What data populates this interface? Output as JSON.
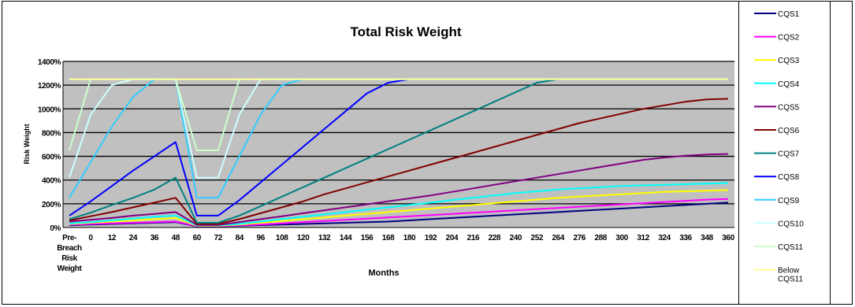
{
  "chart_data": {
    "type": "line",
    "title": "Total Risk Weight",
    "xlabel": "Months",
    "ylabel": "Risk Weight",
    "x": [
      "Pre-Breach Risk Weight",
      "0",
      "12",
      "24",
      "36",
      "48",
      "60",
      "72",
      "84",
      "96",
      "108",
      "120",
      "132",
      "144",
      "156",
      "168",
      "180",
      "192",
      "204",
      "216",
      "228",
      "240",
      "252",
      "264",
      "276",
      "288",
      "300",
      "312",
      "324",
      "336",
      "348",
      "360"
    ],
    "x_label_lines": [
      [
        "Pre-",
        "Breach",
        "Risk",
        "Weight"
      ]
    ],
    "yticks": [
      "0%",
      "200%",
      "400%",
      "600%",
      "800%",
      "1000%",
      "1200%",
      "1400%"
    ],
    "ylim": [
      0,
      1400
    ],
    "grid": true,
    "legend_position": "right",
    "legend_label_lines": {
      "Below CQS11": [
        "Below",
        "CQS11"
      ]
    },
    "series": [
      {
        "name": "CQS1",
        "color": "#000080",
        "values": [
          20,
          25,
          30,
          35,
          40,
          45,
          10,
          10,
          15,
          20,
          25,
          30,
          35,
          40,
          45,
          50,
          60,
          70,
          80,
          90,
          100,
          110,
          120,
          130,
          140,
          150,
          160,
          170,
          180,
          190,
          200,
          210
        ]
      },
      {
        "name": "CQS2",
        "color": "#ff00ff",
        "values": [
          25,
          30,
          35,
          40,
          45,
          50,
          12,
          12,
          18,
          25,
          35,
          45,
          55,
          65,
          75,
          85,
          95,
          105,
          115,
          125,
          135,
          145,
          155,
          165,
          175,
          185,
          195,
          205,
          215,
          225,
          235,
          240
        ]
      },
      {
        "name": "CQS3",
        "color": "#ffff00",
        "values": [
          30,
          40,
          50,
          60,
          70,
          80,
          15,
          15,
          25,
          40,
          55,
          70,
          85,
          100,
          115,
          130,
          145,
          160,
          175,
          190,
          205,
          220,
          235,
          250,
          260,
          270,
          280,
          290,
          300,
          305,
          310,
          315
        ]
      },
      {
        "name": "CQS4",
        "color": "#00ffff",
        "values": [
          35,
          45,
          60,
          75,
          90,
          100,
          18,
          18,
          30,
          50,
          70,
          90,
          110,
          130,
          150,
          170,
          190,
          210,
          230,
          250,
          270,
          290,
          305,
          320,
          330,
          340,
          350,
          355,
          360,
          365,
          370,
          375
        ]
      },
      {
        "name": "CQS5",
        "color": "#800080",
        "values": [
          50,
          65,
          80,
          100,
          115,
          130,
          22,
          22,
          45,
          70,
          95,
          120,
          145,
          170,
          195,
          220,
          245,
          270,
          300,
          330,
          360,
          390,
          420,
          450,
          480,
          510,
          540,
          570,
          590,
          605,
          615,
          620
        ]
      },
      {
        "name": "CQS6",
        "color": "#800000",
        "values": [
          60,
          95,
          130,
          170,
          210,
          250,
          30,
          30,
          70,
          120,
          170,
          220,
          280,
          330,
          380,
          430,
          480,
          530,
          580,
          630,
          680,
          730,
          780,
          830,
          880,
          920,
          960,
          1000,
          1030,
          1060,
          1080,
          1085
        ]
      },
      {
        "name": "CQS7",
        "color": "#008080",
        "values": [
          70,
          125,
          190,
          250,
          320,
          420,
          40,
          40,
          100,
          180,
          260,
          340,
          420,
          500,
          580,
          660,
          740,
          820,
          900,
          980,
          1060,
          1140,
          1220,
          1250,
          1250,
          1250,
          1250,
          1250,
          1250,
          1250,
          1250,
          1250
        ]
      },
      {
        "name": "CQS8",
        "color": "#0000ff",
        "values": [
          100,
          220,
          350,
          480,
          600,
          720,
          100,
          100,
          230,
          380,
          530,
          680,
          830,
          980,
          1130,
          1220,
          1250,
          1250,
          1250,
          1250,
          1250,
          1250,
          1250,
          1250,
          1250,
          1250,
          1250,
          1250,
          1250,
          1250,
          1250,
          1250
        ]
      },
      {
        "name": "CQS9",
        "color": "#33ccff",
        "values": [
          250,
          550,
          850,
          1100,
          1250,
          1250,
          250,
          250,
          600,
          950,
          1200,
          1250,
          1250,
          1250,
          1250,
          1250,
          1250,
          1250,
          1250,
          1250,
          1250,
          1250,
          1250,
          1250,
          1250,
          1250,
          1250,
          1250,
          1250,
          1250,
          1250,
          1250
        ]
      },
      {
        "name": "CQS10",
        "color": "#ccffff",
        "values": [
          420,
          950,
          1200,
          1250,
          1250,
          1250,
          420,
          420,
          950,
          1250,
          1250,
          1250,
          1250,
          1250,
          1250,
          1250,
          1250,
          1250,
          1250,
          1250,
          1250,
          1250,
          1250,
          1250,
          1250,
          1250,
          1250,
          1250,
          1250,
          1250,
          1250,
          1250
        ]
      },
      {
        "name": "CQS11",
        "color": "#ccffcc",
        "values": [
          650,
          1250,
          1250,
          1250,
          1250,
          1250,
          650,
          650,
          1250,
          1250,
          1250,
          1250,
          1250,
          1250,
          1250,
          1250,
          1250,
          1250,
          1250,
          1250,
          1250,
          1250,
          1250,
          1250,
          1250,
          1250,
          1250,
          1250,
          1250,
          1250,
          1250,
          1250
        ]
      },
      {
        "name": "Below CQS11",
        "color": "#ffff99",
        "values": [
          1250,
          1250,
          1250,
          1250,
          1250,
          1250,
          1250,
          1250,
          1250,
          1250,
          1250,
          1250,
          1250,
          1250,
          1250,
          1250,
          1250,
          1250,
          1250,
          1250,
          1250,
          1250,
          1250,
          1250,
          1250,
          1250,
          1250,
          1250,
          1250,
          1250,
          1250,
          1250
        ]
      }
    ]
  }
}
